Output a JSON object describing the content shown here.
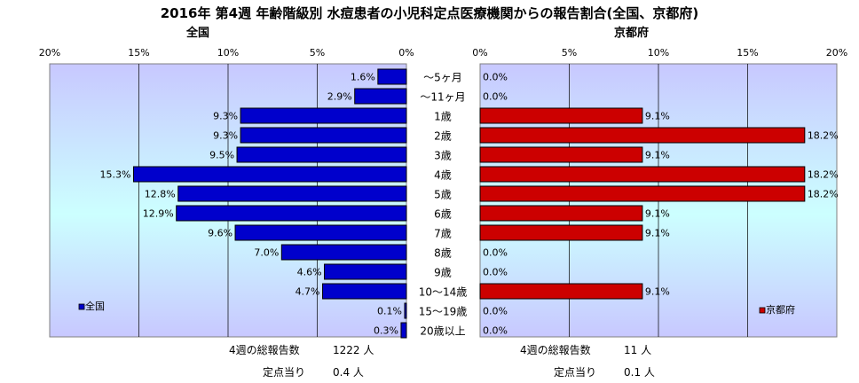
{
  "title": "2016年 第4週 年齢階級別 水痘患者の小児科定点医療機関からの報告割合(全国、京都府)",
  "colors": {
    "national_bar": "#0000cc",
    "kyoto_bar": "#cc0000",
    "plot_bg_top": "#c8c8ff",
    "plot_bg_mid": "#ccffff"
  },
  "chart_data": [
    {
      "type": "bar",
      "orientation": "horizontal",
      "direction": "right-to-left",
      "title": "全国",
      "categories": [
        "～5ヶ月",
        "～11ヶ月",
        "1歳",
        "2歳",
        "3歳",
        "4歳",
        "5歳",
        "6歳",
        "7歳",
        "8歳",
        "9歳",
        "10～14歳",
        "15～19歳",
        "20歳以上"
      ],
      "series": [
        {
          "name": "全国",
          "values": [
            1.6,
            2.9,
            9.3,
            9.3,
            9.5,
            15.3,
            12.8,
            12.9,
            9.6,
            7.0,
            4.6,
            4.7,
            0.1,
            0.3
          ]
        }
      ],
      "value_labels": [
        "1.6%",
        "2.9%",
        "9.3%",
        "9.3%",
        "9.5%",
        "15.3%",
        "12.8%",
        "12.9%",
        "9.6%",
        "7.0%",
        "4.6%",
        "4.7%",
        "0.1%",
        "0.3%"
      ],
      "xlim": [
        0,
        20
      ],
      "ticks": [
        20,
        15,
        10,
        5,
        0
      ],
      "tick_labels": [
        "20%",
        "15%",
        "10%",
        "5%",
        "0%"
      ],
      "grid": true,
      "legend_position": "bottom-left"
    },
    {
      "type": "bar",
      "orientation": "horizontal",
      "direction": "left-to-right",
      "title": "京都府",
      "categories": [
        "～5ヶ月",
        "～11ヶ月",
        "1歳",
        "2歳",
        "3歳",
        "4歳",
        "5歳",
        "6歳",
        "7歳",
        "8歳",
        "9歳",
        "10～14歳",
        "15～19歳",
        "20歳以上"
      ],
      "series": [
        {
          "name": "京都府",
          "values": [
            0.0,
            0.0,
            9.1,
            18.2,
            9.1,
            18.2,
            18.2,
            9.1,
            9.1,
            0.0,
            0.0,
            9.1,
            0.0,
            0.0
          ]
        }
      ],
      "value_labels": [
        "0.0%",
        "0.0%",
        "9.1%",
        "18.2%",
        "9.1%",
        "18.2%",
        "18.2%",
        "9.1%",
        "9.1%",
        "0.0%",
        "0.0%",
        "9.1%",
        "0.0%",
        "0.0%"
      ],
      "xlim": [
        0,
        20
      ],
      "ticks": [
        0,
        5,
        10,
        15,
        20
      ],
      "tick_labels": [
        "0%",
        "5%",
        "10%",
        "15%",
        "20%"
      ],
      "grid": true,
      "legend_position": "bottom-right"
    }
  ],
  "footer": {
    "national": {
      "total_label": "4週の総報告数",
      "total_value": "1222 人",
      "per_label": "定点当り",
      "per_value": "0.4 人"
    },
    "kyoto": {
      "total_label": "4週の総報告数",
      "total_value": "11 人",
      "per_label": "定点当り",
      "per_value": "0.1 人"
    }
  }
}
